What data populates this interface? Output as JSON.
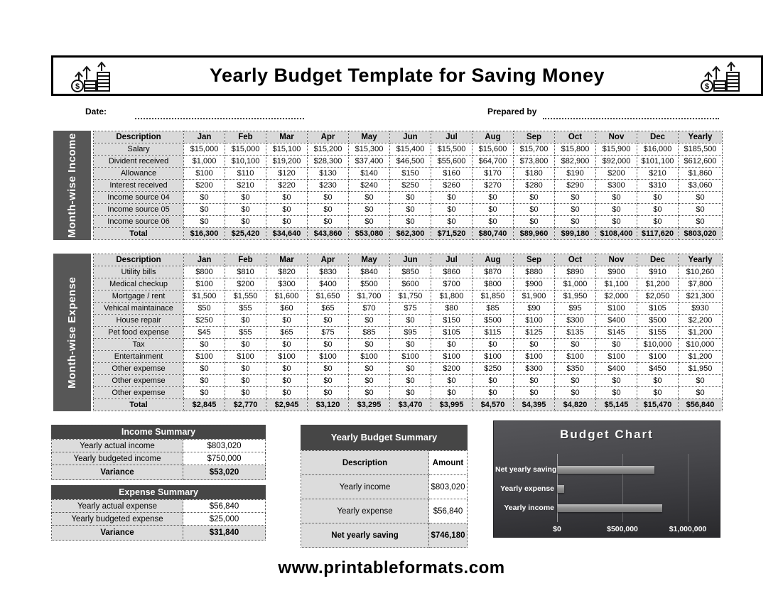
{
  "header": {
    "title": "Yearly Budget Template for Saving Money"
  },
  "meta": {
    "date_label": "Date:",
    "prepared_by_label": "Prepared by"
  },
  "income": {
    "sidebar_label": "Month-wise Income",
    "columns": [
      "Description",
      "Jan",
      "Feb",
      "Mar",
      "Apr",
      "May",
      "Jun",
      "Jul",
      "Aug",
      "Sep",
      "Oct",
      "Nov",
      "Dec",
      "Yearly"
    ],
    "rows": [
      {
        "label": "Salary",
        "values": [
          "$15,000",
          "$15,000",
          "$15,100",
          "$15,200",
          "$15,300",
          "$15,400",
          "$15,500",
          "$15,600",
          "$15,700",
          "$15,800",
          "$15,900",
          "$16,000",
          "$185,500"
        ]
      },
      {
        "label": "Divident received",
        "values": [
          "$1,000",
          "$10,100",
          "$19,200",
          "$28,300",
          "$37,400",
          "$46,500",
          "$55,600",
          "$64,700",
          "$73,800",
          "$82,900",
          "$92,000",
          "$101,100",
          "$612,600"
        ]
      },
      {
        "label": "Allowance",
        "values": [
          "$100",
          "$110",
          "$120",
          "$130",
          "$140",
          "$150",
          "$160",
          "$170",
          "$180",
          "$190",
          "$200",
          "$210",
          "$1,860"
        ]
      },
      {
        "label": "Interest received",
        "values": [
          "$200",
          "$210",
          "$220",
          "$230",
          "$240",
          "$250",
          "$260",
          "$270",
          "$280",
          "$290",
          "$300",
          "$310",
          "$3,060"
        ]
      },
      {
        "label": "Income source 04",
        "values": [
          "$0",
          "$0",
          "$0",
          "$0",
          "$0",
          "$0",
          "$0",
          "$0",
          "$0",
          "$0",
          "$0",
          "$0",
          "$0"
        ]
      },
      {
        "label": "Income source 05",
        "values": [
          "$0",
          "$0",
          "$0",
          "$0",
          "$0",
          "$0",
          "$0",
          "$0",
          "$0",
          "$0",
          "$0",
          "$0",
          "$0"
        ]
      },
      {
        "label": "Income source 06",
        "values": [
          "$0",
          "$0",
          "$0",
          "$0",
          "$0",
          "$0",
          "$0",
          "$0",
          "$0",
          "$0",
          "$0",
          "$0",
          "$0"
        ]
      },
      {
        "label": "Total",
        "bold": true,
        "values": [
          "$16,300",
          "$25,420",
          "$34,640",
          "$43,860",
          "$53,080",
          "$62,300",
          "$71,520",
          "$80,740",
          "$89,960",
          "$99,180",
          "$108,400",
          "$117,620",
          "$803,020"
        ]
      }
    ]
  },
  "expense": {
    "sidebar_label": "Month-wise Expense",
    "columns": [
      "Description",
      "Jan",
      "Feb",
      "Mar",
      "Apr",
      "May",
      "Jun",
      "Jul",
      "Aug",
      "Sep",
      "Oct",
      "Nov",
      "Dec",
      "Yearly"
    ],
    "rows": [
      {
        "label": "Utility bills",
        "values": [
          "$800",
          "$810",
          "$820",
          "$830",
          "$840",
          "$850",
          "$860",
          "$870",
          "$880",
          "$890",
          "$900",
          "$910",
          "$10,260"
        ]
      },
      {
        "label": "Medical checkup",
        "values": [
          "$100",
          "$200",
          "$300",
          "$400",
          "$500",
          "$600",
          "$700",
          "$800",
          "$900",
          "$1,000",
          "$1,100",
          "$1,200",
          "$7,800"
        ]
      },
      {
        "label": "Mortgage / rent",
        "values": [
          "$1,500",
          "$1,550",
          "$1,600",
          "$1,650",
          "$1,700",
          "$1,750",
          "$1,800",
          "$1,850",
          "$1,900",
          "$1,950",
          "$2,000",
          "$2,050",
          "$21,300"
        ]
      },
      {
        "label": "Vehical maintainace",
        "values": [
          "$50",
          "$55",
          "$60",
          "$65",
          "$70",
          "$75",
          "$80",
          "$85",
          "$90",
          "$95",
          "$100",
          "$105",
          "$930"
        ]
      },
      {
        "label": "House repair",
        "values": [
          "$250",
          "$0",
          "$0",
          "$0",
          "$0",
          "$0",
          "$150",
          "$500",
          "$100",
          "$300",
          "$400",
          "$500",
          "$2,200"
        ]
      },
      {
        "label": "Pet food expense",
        "values": [
          "$45",
          "$55",
          "$65",
          "$75",
          "$85",
          "$95",
          "$105",
          "$115",
          "$125",
          "$135",
          "$145",
          "$155",
          "$1,200"
        ]
      },
      {
        "label": "Tax",
        "values": [
          "$0",
          "$0",
          "$0",
          "$0",
          "$0",
          "$0",
          "$0",
          "$0",
          "$0",
          "$0",
          "$0",
          "$10,000",
          "$10,000"
        ]
      },
      {
        "label": "Entertainment",
        "values": [
          "$100",
          "$100",
          "$100",
          "$100",
          "$100",
          "$100",
          "$100",
          "$100",
          "$100",
          "$100",
          "$100",
          "$100",
          "$1,200"
        ]
      },
      {
        "label": "Other expemse",
        "values": [
          "$0",
          "$0",
          "$0",
          "$0",
          "$0",
          "$0",
          "$200",
          "$250",
          "$300",
          "$350",
          "$400",
          "$450",
          "$1,950"
        ]
      },
      {
        "label": "Other expemse",
        "values": [
          "$0",
          "$0",
          "$0",
          "$0",
          "$0",
          "$0",
          "$0",
          "$0",
          "$0",
          "$0",
          "$0",
          "$0",
          "$0"
        ]
      },
      {
        "label": "Other expemse",
        "values": [
          "$0",
          "$0",
          "$0",
          "$0",
          "$0",
          "$0",
          "$0",
          "$0",
          "$0",
          "$0",
          "$0",
          "$0",
          "$0"
        ]
      },
      {
        "label": "Total",
        "bold": true,
        "values": [
          "$2,845",
          "$2,770",
          "$2,945",
          "$3,120",
          "$3,295",
          "$3,470",
          "$3,995",
          "$4,570",
          "$4,395",
          "$4,820",
          "$5,145",
          "$15,470",
          "$56,840"
        ]
      }
    ]
  },
  "income_summary": {
    "title": "Income Summary",
    "rows": [
      {
        "label": "Yearly actual income",
        "value": "$803,020"
      },
      {
        "label": "Yearly budgeted income",
        "value": "$750,000"
      },
      {
        "label": "Variance",
        "value": "$53,020",
        "bold": true
      }
    ]
  },
  "expense_summary": {
    "title": "Expense Summary",
    "rows": [
      {
        "label": "Yearly actual expense",
        "value": "$56,840"
      },
      {
        "label": "Yearly budgeted expense",
        "value": "$25,000"
      },
      {
        "label": "Variance",
        "value": "$31,840",
        "bold": true
      }
    ]
  },
  "budget_summary": {
    "title": "Yearly Budget Summary",
    "columns": [
      "Description",
      "Amount"
    ],
    "rows": [
      {
        "label": "Yearly income",
        "value": "$803,020"
      },
      {
        "label": "Yearly expense",
        "value": "$56,840"
      },
      {
        "label": "Net yearly saving",
        "value": "$746,180",
        "bold": true
      }
    ]
  },
  "chart_data": {
    "type": "bar",
    "orientation": "horizontal",
    "title": "Budget Chart",
    "categories": [
      "Net yearly saving",
      "Yearly expense",
      "Yearly income"
    ],
    "values": [
      746180,
      56840,
      803020
    ],
    "xlim": [
      0,
      1000000
    ],
    "xticks": [
      {
        "label": "$0",
        "value": 0
      },
      {
        "label": "$500,000",
        "value": 500000
      },
      {
        "label": "$1,000,000",
        "value": 1000000
      }
    ],
    "grid": true,
    "legend": false,
    "colors": {
      "bar": "#8f8f8f",
      "background_top": "#56565a",
      "background_bottom": "#29292c",
      "text": "#ffffff"
    }
  },
  "footer": {
    "url": "www.printableformats.com"
  }
}
